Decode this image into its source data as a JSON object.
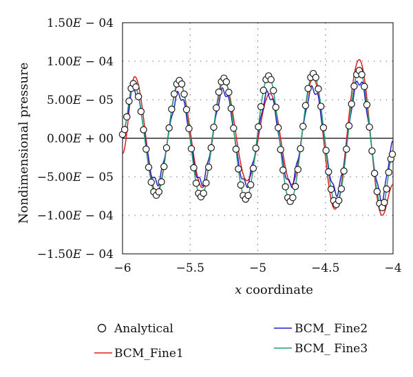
{
  "chart_data": {
    "type": "line",
    "xlabel_italic": "x",
    "xlabel_rest": " coordinate",
    "ylabel": "Nondimensional pressure",
    "xlim": [
      -6,
      -4
    ],
    "ylim": [
      -0.00015,
      0.00015
    ],
    "x_ticks": [
      -6,
      -5.5,
      -5,
      -4.5,
      -4
    ],
    "x_tick_labels": [
      "−6",
      "−5.5",
      "−5",
      "−4.5",
      "−4"
    ],
    "y_ticks": [
      0.00015,
      0.0001,
      5e-05,
      0,
      -5e-05,
      -0.0001,
      -0.00015
    ],
    "y_tick_labels": [
      {
        "mant": "1.50",
        "sign": "− 04"
      },
      {
        "mant": "1.00",
        "sign": "− 04"
      },
      {
        "mant": "5.00",
        "sign": "− 05"
      },
      {
        "mant": "0.00",
        "sign": "+ 00"
      },
      {
        "mant": "−5.00",
        "sign": "− 05"
      },
      {
        "mant": "−1.00",
        "sign": "− 04"
      },
      {
        "mant": "−1.50",
        "sign": "− 04"
      }
    ],
    "grid": "dotted",
    "legend_position": "bottom",
    "series": [
      {
        "name": "Analytical",
        "style": "markers",
        "color": "#1a1a1a",
        "marker_fill": "#ffffff"
      },
      {
        "name": "BCM_Fine1",
        "style": "line",
        "color": "#e31a1c"
      },
      {
        "name": "BCM_ Fine2",
        "style": "line",
        "color": "#1f1fcc"
      },
      {
        "name": "BCM_ Fine3",
        "style": "line",
        "color": "#22a06b"
      }
    ],
    "analytical_peaks": [
      [
        -5.92,
        7.1e-05
      ],
      [
        -5.75,
        -7.4e-05
      ],
      [
        -5.58,
        7.5e-05
      ],
      [
        -5.42,
        -7.6e-05
      ],
      [
        -5.25,
        7.8e-05
      ],
      [
        -5.09,
        -7.9e-05
      ],
      [
        -4.92,
        8.1e-05
      ],
      [
        -4.76,
        -8.2e-05
      ],
      [
        -4.59,
        8.4e-05
      ],
      [
        -4.42,
        -8.6e-05
      ],
      [
        -4.25,
        8.8e-05
      ],
      [
        -4.08,
        -9e-05
      ]
    ],
    "fine1_peaks": [
      [
        -5.91,
        8e-05
      ],
      [
        -5.75,
        -7e-05
      ],
      [
        -5.58,
        7.2e-05
      ],
      [
        -5.41,
        -6.4e-05
      ],
      [
        -5.25,
        7.4e-05
      ],
      [
        -5.08,
        -5.5e-05
      ],
      [
        -4.91,
        5.8e-05
      ],
      [
        -4.75,
        -6e-05
      ],
      [
        -4.59,
        7.8e-05
      ],
      [
        -4.43,
        -9.2e-05
      ],
      [
        -4.25,
        0.000102
      ],
      [
        -4.08,
        -0.0001
      ]
    ],
    "fine2_peaks": [
      [
        -5.92,
        6.5e-05
      ],
      [
        -5.75,
        -5.8e-05
      ],
      [
        -5.58,
        5.7e-05
      ],
      [
        -5.42,
        -5.8e-05
      ],
      [
        -5.25,
        6.2e-05
      ],
      [
        -5.09,
        -6e-05
      ],
      [
        -4.92,
        5.8e-05
      ],
      [
        -4.76,
        -6e-05
      ],
      [
        -4.59,
        6.5e-05
      ],
      [
        -4.42,
        -7e-05
      ],
      [
        -4.25,
        7.5e-05
      ],
      [
        -4.08,
        -7.8e-05
      ]
    ],
    "analytical_markers_per_half_cycle": 9
  }
}
